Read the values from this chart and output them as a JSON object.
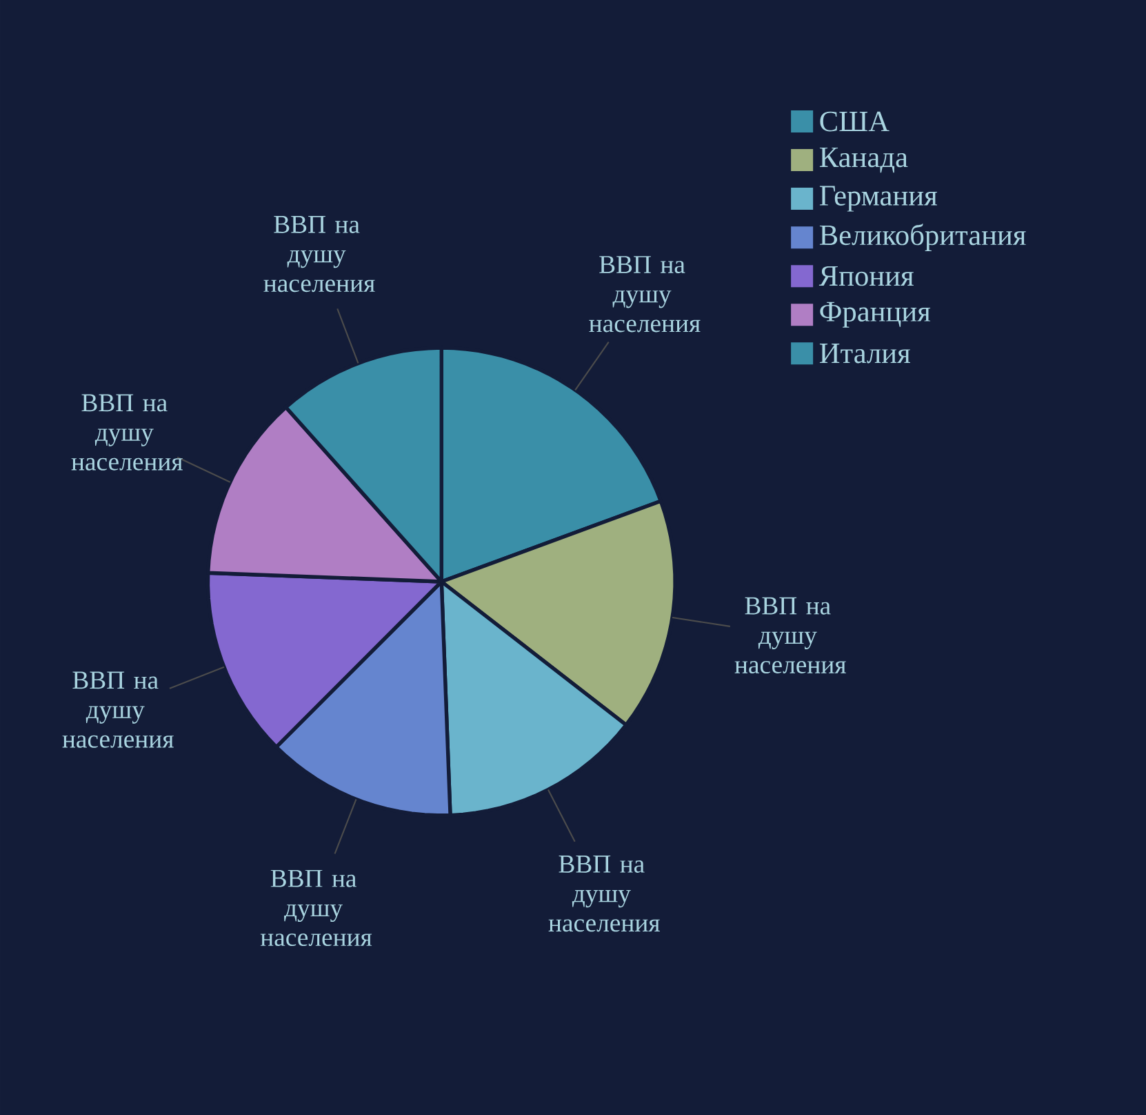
{
  "chart_data": {
    "type": "pie",
    "categories": [
      "США",
      "Канада",
      "Германия",
      "Великобритания",
      "Япония",
      "Франция",
      "Италия"
    ],
    "values": [
      19.4,
      16.1,
      13.9,
      13.1,
      13.1,
      12.8,
      11.6
    ],
    "colors": [
      "#3a8fa8",
      "#9fb07f",
      "#6ab4cc",
      "#6585cf",
      "#8468d0",
      "#b07ec4",
      "#3a8fa8"
    ],
    "value_labels": [
      "ВВП на душу населения",
      "ВВП на душу населения",
      "ВВП на душу населения",
      "ВВП на душу населения",
      "ВВП на душу населения",
      "ВВП на душу населения",
      "ВВП на душу населения"
    ],
    "legend": "top right"
  }
}
